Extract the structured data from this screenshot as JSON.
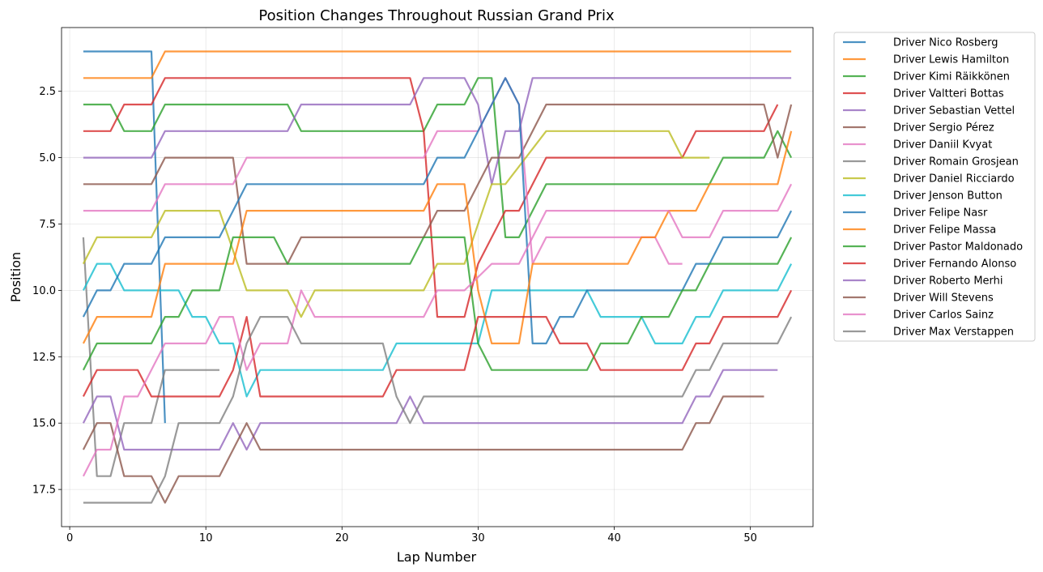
{
  "chart_data": {
    "type": "line",
    "title": "Position Changes Throughout Russian Grand Prix",
    "xlabel": "Lap Number",
    "ylabel": "Position",
    "xlim": [
      -0.6,
      54.6
    ],
    "ylim": [
      18.9,
      0.1
    ],
    "y_inverted": true,
    "x_ticks": [
      0,
      10,
      20,
      30,
      40,
      50
    ],
    "x_tick_labels": [
      "0",
      "10",
      "20",
      "30",
      "40",
      "50"
    ],
    "y_ticks": [
      2.5,
      5.0,
      7.5,
      10.0,
      12.5,
      15.0,
      17.5
    ],
    "y_tick_labels": [
      "2.5",
      "5.0",
      "7.5",
      "10.0",
      "12.5",
      "15.0",
      "17.5"
    ],
    "grid": true,
    "legend_position": "outside-right",
    "series": [
      {
        "name": "Driver Nico Rosberg",
        "color": "#1f77b4",
        "points": [
          [
            1,
            1
          ],
          [
            6,
            1
          ],
          [
            7,
            15
          ]
        ]
      },
      {
        "name": "Driver Lewis Hamilton",
        "color": "#ff7f0e",
        "points": [
          [
            1,
            2
          ],
          [
            6,
            2
          ],
          [
            7,
            1
          ],
          [
            53,
            1
          ]
        ]
      },
      {
        "name": "Driver Kimi Räikkönen",
        "color": "#2ca02c",
        "points": [
          [
            1,
            3
          ],
          [
            3,
            3
          ],
          [
            4,
            4
          ],
          [
            6,
            4
          ],
          [
            7,
            3
          ],
          [
            16,
            3
          ],
          [
            17,
            4
          ],
          [
            26,
            4
          ],
          [
            27,
            3
          ],
          [
            29,
            3
          ],
          [
            30,
            2
          ],
          [
            31,
            2
          ],
          [
            32,
            8
          ],
          [
            33,
            8
          ],
          [
            35,
            6
          ],
          [
            47,
            6
          ],
          [
            48,
            5
          ],
          [
            51,
            5
          ],
          [
            52,
            4
          ],
          [
            53,
            5
          ]
        ]
      },
      {
        "name": "Driver Valtteri Bottas",
        "color": "#d62728",
        "points": [
          [
            1,
            4
          ],
          [
            3,
            4
          ],
          [
            4,
            3
          ],
          [
            6,
            3
          ],
          [
            7,
            2
          ],
          [
            25,
            2
          ],
          [
            26,
            4
          ],
          [
            27,
            11
          ],
          [
            29,
            11
          ],
          [
            30,
            9
          ],
          [
            32,
            7
          ],
          [
            33,
            7
          ],
          [
            35,
            5
          ],
          [
            45,
            5
          ],
          [
            46,
            4
          ],
          [
            51,
            4
          ],
          [
            52,
            3
          ]
        ]
      },
      {
        "name": "Driver Sebastian Vettel",
        "color": "#9467bd",
        "points": [
          [
            1,
            5
          ],
          [
            6,
            5
          ],
          [
            7,
            4
          ],
          [
            16,
            4
          ],
          [
            17,
            3
          ],
          [
            25,
            3
          ],
          [
            26,
            2
          ],
          [
            29,
            2
          ],
          [
            30,
            3
          ],
          [
            31,
            6
          ],
          [
            32,
            4
          ],
          [
            33,
            4
          ],
          [
            34,
            2
          ],
          [
            53,
            2
          ]
        ]
      },
      {
        "name": "Driver Sergio Pérez",
        "color": "#8c564b",
        "points": [
          [
            1,
            6
          ],
          [
            6,
            6
          ],
          [
            7,
            5
          ],
          [
            12,
            5
          ],
          [
            13,
            9
          ],
          [
            16,
            9
          ],
          [
            17,
            8
          ],
          [
            26,
            8
          ],
          [
            27,
            7
          ],
          [
            29,
            7
          ],
          [
            31,
            5
          ],
          [
            33,
            5
          ],
          [
            35,
            3
          ],
          [
            51,
            3
          ],
          [
            52,
            5
          ],
          [
            53,
            3
          ]
        ]
      },
      {
        "name": "Driver Daniil Kvyat",
        "color": "#e377c2",
        "points": [
          [
            1,
            7
          ],
          [
            6,
            7
          ],
          [
            7,
            6
          ],
          [
            12,
            6
          ],
          [
            13,
            5
          ],
          [
            26,
            5
          ],
          [
            27,
            4
          ],
          [
            30,
            4
          ],
          [
            32,
            2
          ],
          [
            33,
            3
          ],
          [
            34,
            9
          ],
          [
            35,
            8
          ],
          [
            43,
            8
          ],
          [
            44,
            9
          ],
          [
            45,
            9
          ]
        ]
      },
      {
        "name": "Driver Romain Grosjean",
        "color": "#7f7f7f",
        "points": [
          [
            1,
            8
          ],
          [
            2,
            17
          ],
          [
            3,
            17
          ],
          [
            4,
            15
          ],
          [
            6,
            15
          ],
          [
            7,
            13
          ],
          [
            11,
            13
          ]
        ]
      },
      {
        "name": "Driver Daniel Ricciardo",
        "color": "#bcbd22",
        "points": [
          [
            1,
            9
          ],
          [
            2,
            8
          ],
          [
            6,
            8
          ],
          [
            7,
            7
          ],
          [
            11,
            7
          ],
          [
            13,
            10
          ],
          [
            16,
            10
          ],
          [
            17,
            11
          ],
          [
            18,
            10
          ],
          [
            26,
            10
          ],
          [
            27,
            9
          ],
          [
            29,
            9
          ],
          [
            31,
            6
          ],
          [
            32,
            6
          ],
          [
            35,
            4
          ],
          [
            44,
            4
          ],
          [
            45,
            5
          ],
          [
            47,
            5
          ]
        ]
      },
      {
        "name": "Driver Jenson Button",
        "color": "#17becf",
        "points": [
          [
            1,
            10
          ],
          [
            2,
            9
          ],
          [
            3,
            9
          ],
          [
            4,
            10
          ],
          [
            8,
            10
          ],
          [
            9,
            11
          ],
          [
            10,
            11
          ],
          [
            11,
            12
          ],
          [
            12,
            12
          ],
          [
            13,
            14
          ],
          [
            14,
            13
          ],
          [
            23,
            13
          ],
          [
            24,
            12
          ],
          [
            30,
            12
          ],
          [
            31,
            10
          ],
          [
            38,
            10
          ],
          [
            39,
            11
          ],
          [
            42,
            11
          ],
          [
            43,
            12
          ],
          [
            45,
            12
          ],
          [
            46,
            11
          ],
          [
            47,
            11
          ],
          [
            48,
            10
          ],
          [
            52,
            10
          ],
          [
            53,
            9
          ]
        ]
      },
      {
        "name": "Driver Felipe Nasr",
        "color": "#1f77b4",
        "points": [
          [
            1,
            11
          ],
          [
            2,
            10
          ],
          [
            3,
            10
          ],
          [
            4,
            9
          ],
          [
            6,
            9
          ],
          [
            7,
            8
          ],
          [
            11,
            8
          ],
          [
            13,
            6
          ],
          [
            26,
            6
          ],
          [
            27,
            5
          ],
          [
            29,
            5
          ],
          [
            31,
            3
          ],
          [
            32,
            2
          ],
          [
            33,
            3
          ],
          [
            34,
            12
          ],
          [
            35,
            12
          ],
          [
            36,
            11
          ],
          [
            37,
            11
          ],
          [
            38,
            10
          ],
          [
            45,
            10
          ],
          [
            46,
            9
          ],
          [
            47,
            9
          ],
          [
            48,
            8
          ],
          [
            52,
            8
          ],
          [
            53,
            7
          ]
        ]
      },
      {
        "name": "Driver Felipe Massa",
        "color": "#ff7f0e",
        "points": [
          [
            1,
            12
          ],
          [
            2,
            11
          ],
          [
            6,
            11
          ],
          [
            7,
            9
          ],
          [
            12,
            9
          ],
          [
            13,
            7
          ],
          [
            26,
            7
          ],
          [
            27,
            6
          ],
          [
            29,
            6
          ],
          [
            30,
            10
          ],
          [
            31,
            12
          ],
          [
            33,
            12
          ],
          [
            34,
            9
          ],
          [
            41,
            9
          ],
          [
            42,
            8
          ],
          [
            43,
            8
          ],
          [
            44,
            7
          ],
          [
            46,
            7
          ],
          [
            47,
            6
          ],
          [
            52,
            6
          ],
          [
            53,
            4
          ]
        ]
      },
      {
        "name": "Driver Pastor Maldonado",
        "color": "#2ca02c",
        "points": [
          [
            1,
            13
          ],
          [
            2,
            12
          ],
          [
            6,
            12
          ],
          [
            7,
            11
          ],
          [
            8,
            11
          ],
          [
            9,
            10
          ],
          [
            11,
            10
          ],
          [
            12,
            8
          ],
          [
            15,
            8
          ],
          [
            16,
            9
          ],
          [
            25,
            9
          ],
          [
            26,
            8
          ],
          [
            28,
            8
          ],
          [
            29,
            8
          ],
          [
            30,
            12
          ],
          [
            31,
            13
          ],
          [
            38,
            13
          ],
          [
            39,
            12
          ],
          [
            41,
            12
          ],
          [
            42,
            11
          ],
          [
            44,
            11
          ],
          [
            45,
            10
          ],
          [
            46,
            10
          ],
          [
            47,
            9
          ],
          [
            52,
            9
          ],
          [
            53,
            8
          ]
        ]
      },
      {
        "name": "Driver Fernando Alonso",
        "color": "#d62728",
        "points": [
          [
            1,
            14
          ],
          [
            2,
            13
          ],
          [
            5,
            13
          ],
          [
            6,
            14
          ],
          [
            11,
            14
          ],
          [
            12,
            13
          ],
          [
            13,
            11
          ],
          [
            14,
            14
          ],
          [
            23,
            14
          ],
          [
            24,
            13
          ],
          [
            29,
            13
          ],
          [
            30,
            11
          ],
          [
            35,
            11
          ],
          [
            36,
            12
          ],
          [
            38,
            12
          ],
          [
            39,
            13
          ],
          [
            45,
            13
          ],
          [
            46,
            12
          ],
          [
            47,
            12
          ],
          [
            48,
            11
          ],
          [
            52,
            11
          ],
          [
            53,
            10
          ]
        ]
      },
      {
        "name": "Driver Roberto Merhi",
        "color": "#9467bd",
        "points": [
          [
            1,
            15
          ],
          [
            2,
            14
          ],
          [
            3,
            14
          ],
          [
            4,
            16
          ],
          [
            11,
            16
          ],
          [
            12,
            15
          ],
          [
            13,
            16
          ],
          [
            14,
            15
          ],
          [
            24,
            15
          ],
          [
            25,
            14
          ],
          [
            26,
            15
          ],
          [
            45,
            15
          ],
          [
            46,
            14
          ],
          [
            47,
            14
          ],
          [
            48,
            13
          ],
          [
            52,
            13
          ]
        ]
      },
      {
        "name": "Driver Will Stevens",
        "color": "#8c564b",
        "points": [
          [
            1,
            16
          ],
          [
            2,
            15
          ],
          [
            3,
            15
          ],
          [
            4,
            17
          ],
          [
            6,
            17
          ],
          [
            7,
            18
          ],
          [
            8,
            17
          ],
          [
            11,
            17
          ],
          [
            13,
            15
          ],
          [
            14,
            16
          ],
          [
            45,
            16
          ],
          [
            46,
            15
          ],
          [
            47,
            15
          ],
          [
            48,
            14
          ],
          [
            51,
            14
          ]
        ]
      },
      {
        "name": "Driver Carlos Sainz",
        "color": "#e377c2",
        "points": [
          [
            1,
            17
          ],
          [
            2,
            16
          ],
          [
            3,
            16
          ],
          [
            4,
            14
          ],
          [
            5,
            14
          ],
          [
            7,
            12
          ],
          [
            10,
            12
          ],
          [
            11,
            11
          ],
          [
            12,
            11
          ],
          [
            13,
            13
          ],
          [
            14,
            12
          ],
          [
            16,
            12
          ],
          [
            17,
            10
          ],
          [
            18,
            11
          ],
          [
            26,
            11
          ],
          [
            27,
            10
          ],
          [
            29,
            10
          ],
          [
            31,
            9
          ],
          [
            33,
            9
          ],
          [
            35,
            7
          ],
          [
            44,
            7
          ],
          [
            45,
            8
          ],
          [
            47,
            8
          ],
          [
            48,
            7
          ],
          [
            52,
            7
          ],
          [
            53,
            6
          ]
        ]
      },
      {
        "name": "Driver Max Verstappen",
        "color": "#7f7f7f",
        "points": [
          [
            1,
            18
          ],
          [
            6,
            18
          ],
          [
            7,
            17
          ],
          [
            8,
            15
          ],
          [
            11,
            15
          ],
          [
            12,
            14
          ],
          [
            13,
            12
          ],
          [
            14,
            11
          ],
          [
            16,
            11
          ],
          [
            17,
            12
          ],
          [
            23,
            12
          ],
          [
            24,
            14
          ],
          [
            25,
            15
          ],
          [
            26,
            14
          ],
          [
            45,
            14
          ],
          [
            46,
            13
          ],
          [
            47,
            13
          ],
          [
            48,
            12
          ],
          [
            52,
            12
          ],
          [
            53,
            11
          ]
        ]
      }
    ]
  }
}
